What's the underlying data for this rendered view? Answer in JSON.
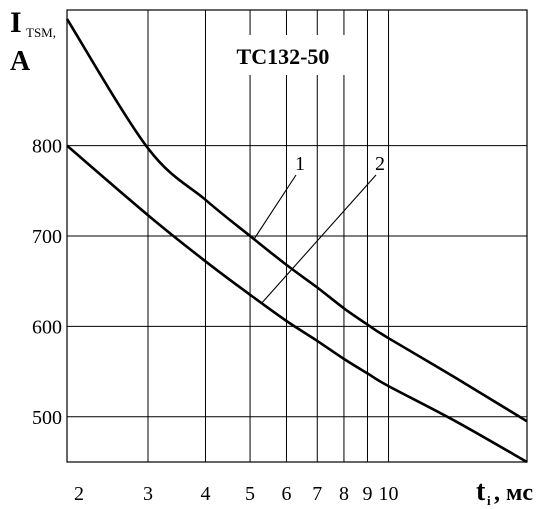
{
  "chart_data": {
    "type": "line",
    "title": "TC132-50",
    "ylabel": {
      "main": "I",
      "sub": "TSM,",
      "unit": "A"
    },
    "xlabel": {
      "main": "t",
      "sub": "i",
      "unit": ", мс"
    },
    "xscale": "log",
    "xlim": [
      2,
      20
    ],
    "ylim": [
      450,
      950
    ],
    "grid": true,
    "x_ticks": [
      2,
      3,
      4,
      5,
      6,
      7,
      8,
      9,
      10
    ],
    "x_tick_labels": [
      "2",
      "3",
      "4",
      "5",
      "6",
      "7",
      "8",
      "9",
      "10"
    ],
    "y_ticks": [
      500,
      600,
      700,
      800
    ],
    "y_tick_labels": [
      "500",
      "600",
      "700",
      "800"
    ],
    "series": [
      {
        "name": "1",
        "x": [
          2,
          3,
          4,
          5,
          6,
          7,
          8,
          9,
          10,
          14,
          20
        ],
        "y": [
          940,
          797,
          740,
          700,
          668,
          643,
          620,
          602,
          587,
          543,
          495
        ]
      },
      {
        "name": "2",
        "x": [
          2,
          3,
          4,
          5,
          6,
          7,
          8,
          9,
          10,
          14,
          20
        ],
        "y": [
          800,
          723,
          672,
          635,
          606,
          584,
          564,
          548,
          534,
          495,
          450
        ]
      }
    ],
    "annotations": [
      {
        "text": "1",
        "series": "1"
      },
      {
        "text": "2",
        "series": "2"
      }
    ]
  }
}
